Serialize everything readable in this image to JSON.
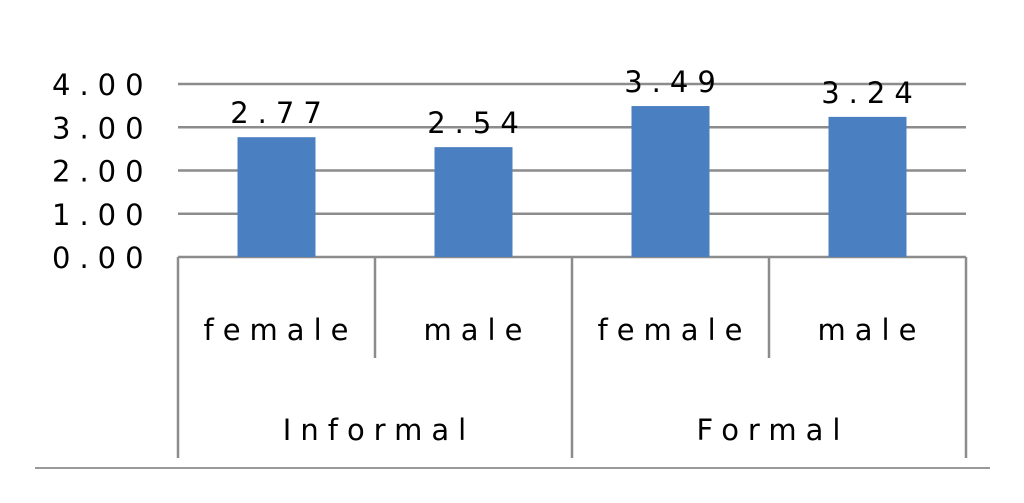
{
  "chart_data": {
    "type": "bar",
    "title": "",
    "xlabel": "",
    "ylabel": "",
    "ylim": [
      0,
      4
    ],
    "yticks": [
      "0.00",
      "1.00",
      "2.00",
      "3.00",
      "4.00"
    ],
    "grid": true,
    "legend": "none",
    "groups": [
      {
        "label": "Informal",
        "categories": [
          "female",
          "male"
        ]
      },
      {
        "label": "Formal",
        "categories": [
          "female",
          "male"
        ]
      }
    ],
    "categories": [
      "female",
      "male",
      "female",
      "male"
    ],
    "values": [
      2.77,
      2.54,
      3.49,
      3.24
    ],
    "data_labels": [
      "2.77",
      "2.54",
      "3.49",
      "3.24"
    ],
    "bar_color": "#4a7fc1",
    "grid_color": "#8c8c8c"
  }
}
